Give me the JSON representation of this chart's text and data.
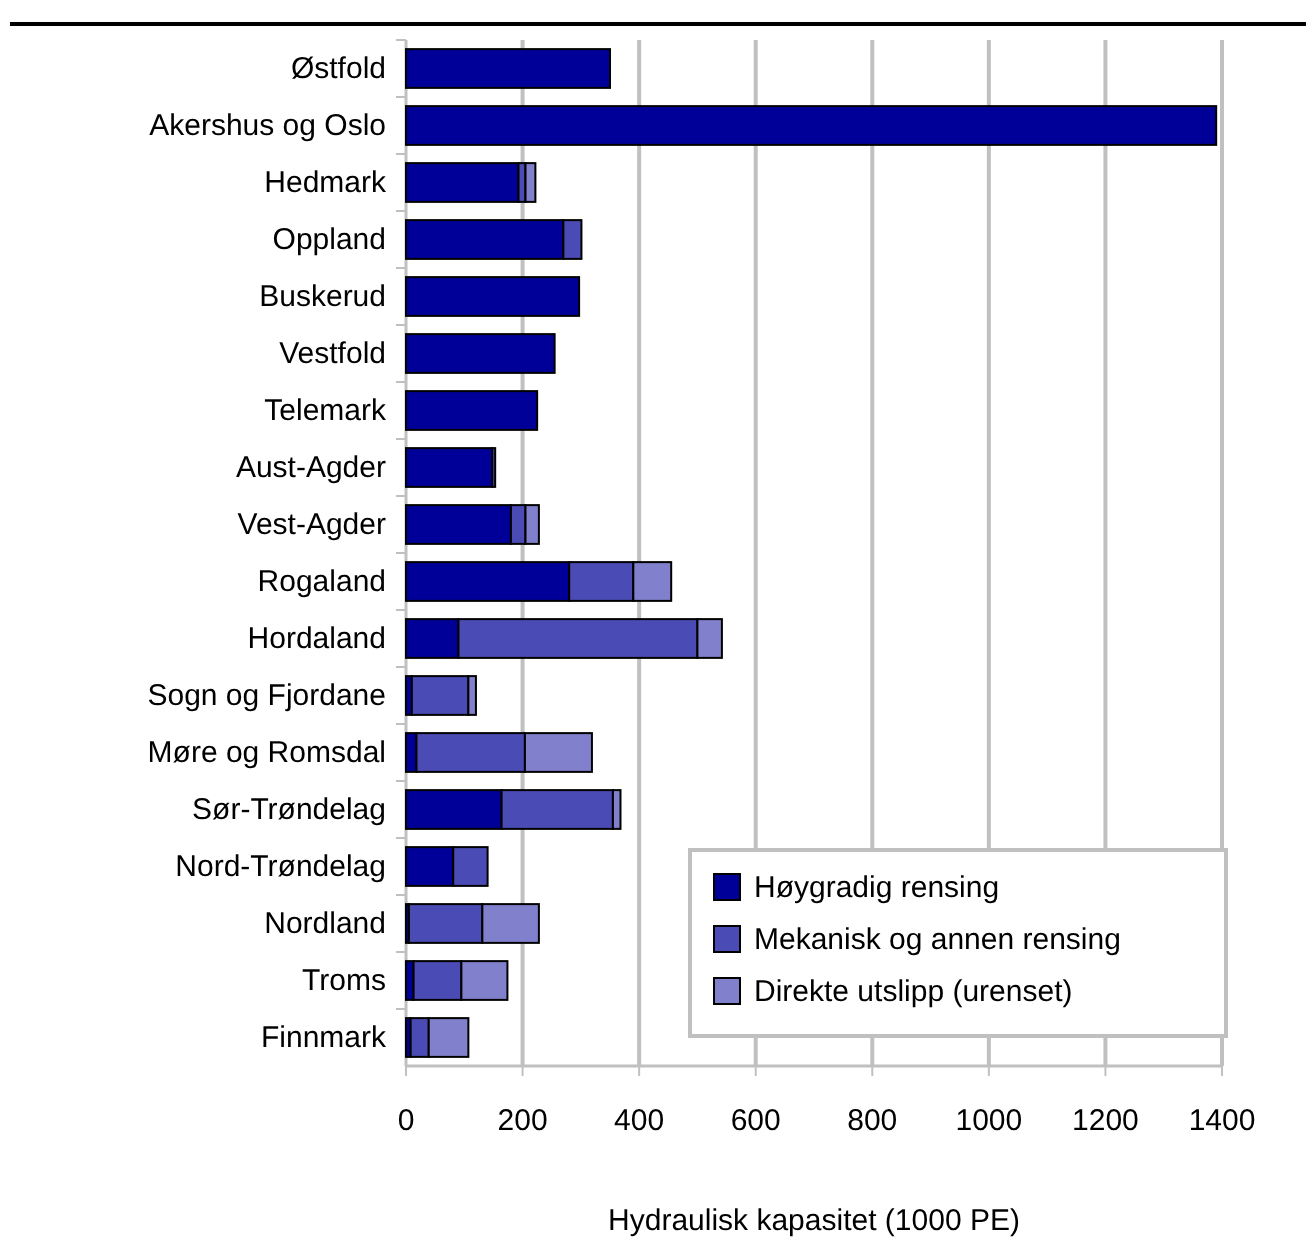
{
  "chart_data": {
    "type": "bar",
    "orientation": "horizontal",
    "stacked": true,
    "xlabel": "Hydraulisk kapasitet (1000 PE)",
    "categories": [
      "Østfold",
      "Akershus og Oslo",
      "Hedmark",
      "Oppland",
      "Buskerud",
      "Vestfold",
      "Telemark",
      "Aust-Agder",
      "Vest-Agder",
      "Rogaland",
      "Hordaland",
      "Sogn og Fjordane",
      "Møre og Romsdal",
      "Sør-Trøndelag",
      "Nord-Trøndelag",
      "Nordland",
      "Troms",
      "Finnmark"
    ],
    "series": [
      {
        "name": "Høygradig rensing",
        "color": "#000099",
        "values": [
          350,
          1390,
          193,
          270,
          297,
          255,
          225,
          148,
          180,
          280,
          90,
          10,
          18,
          164,
          81,
          5,
          13,
          8
        ]
      },
      {
        "name": "Mekanisk og annen rensing",
        "color": "#4b4bb5",
        "values": [
          0,
          0,
          12,
          31,
          0,
          0,
          0,
          5,
          25,
          110,
          410,
          97,
          186,
          191,
          59,
          126,
          82,
          31
        ]
      },
      {
        "name": "Direkte utslipp (urenset)",
        "color": "#8080cc",
        "values": [
          0,
          0,
          17,
          0,
          0,
          0,
          0,
          0,
          23,
          65,
          42,
          13,
          115,
          13,
          0,
          97,
          79,
          68
        ]
      }
    ],
    "xlim": [
      0,
      1400
    ],
    "xticks": [
      0,
      200,
      400,
      600,
      800,
      1000,
      1200,
      1400
    ],
    "grid": "x",
    "legend": "bottom right"
  }
}
